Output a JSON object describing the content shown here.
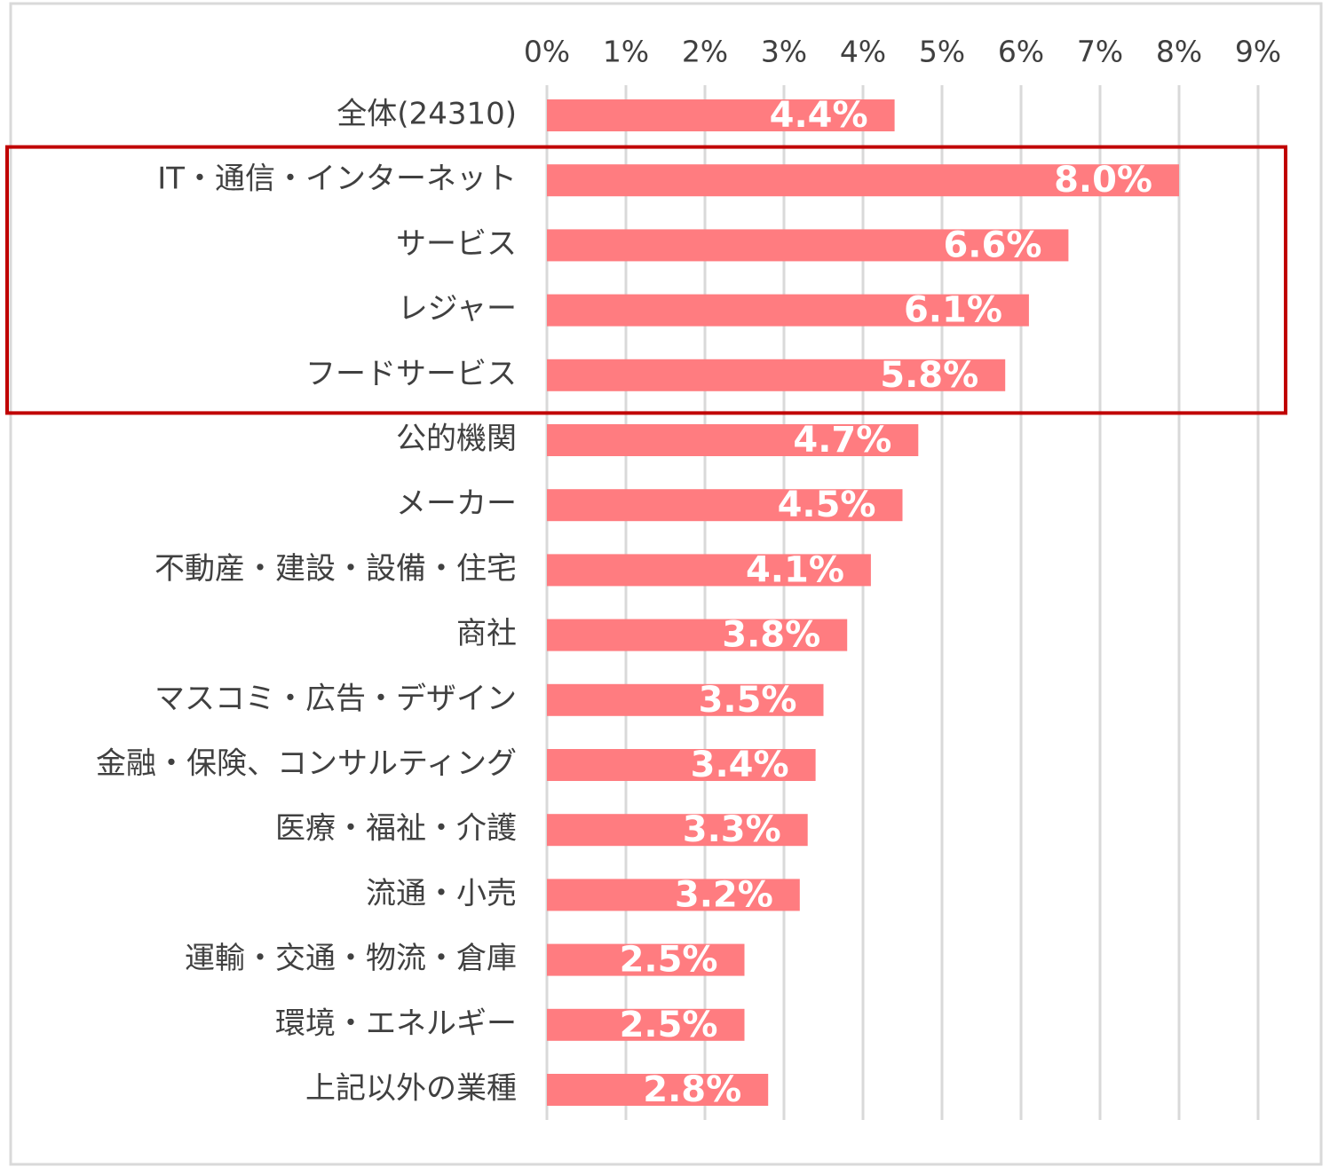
{
  "colors": {
    "bar": "#ff7c80",
    "highlight_box": "#c00000",
    "gridline": "#d9d9d9",
    "frame": "#d9d9d9",
    "text": "#404040",
    "data_label": "#ffffff"
  },
  "chart_data": {
    "type": "bar",
    "orientation": "horizontal",
    "title": "",
    "xlabel": "",
    "ylabel": "",
    "xlim": [
      0,
      9
    ],
    "x_unit": "%",
    "grid": true,
    "legend": "none",
    "x_ticks": [
      "0%",
      "1%",
      "2%",
      "3%",
      "4%",
      "5%",
      "6%",
      "7%",
      "8%",
      "9%"
    ],
    "categories": [
      "全体(24310)",
      "IT・通信・インターネット",
      "サービス",
      "レジャー",
      "フードサービス",
      "公的機関",
      "メーカー",
      "不動産・建設・設備・住宅",
      "商社",
      "マスコミ・広告・デザイン",
      "金融・保険、コンサルティング",
      "医療・福祉・介護",
      "流通・小売",
      "運輸・交通・物流・倉庫",
      "環境・エネルギー",
      "上記以外の業種"
    ],
    "values": [
      4.4,
      8.0,
      6.6,
      6.1,
      5.8,
      4.7,
      4.5,
      4.1,
      3.8,
      3.5,
      3.4,
      3.3,
      3.2,
      2.5,
      2.5,
      2.8
    ],
    "data_labels": [
      "4.4%",
      "8.0%",
      "6.6%",
      "6.1%",
      "5.8%",
      "4.7%",
      "4.5%",
      "4.1%",
      "3.8%",
      "3.5%",
      "3.4%",
      "3.3%",
      "3.2%",
      "2.5%",
      "2.5%",
      "2.8%"
    ],
    "highlighted_categories": [
      "IT・通信・インターネット",
      "サービス",
      "レジャー",
      "フードサービス"
    ]
  }
}
